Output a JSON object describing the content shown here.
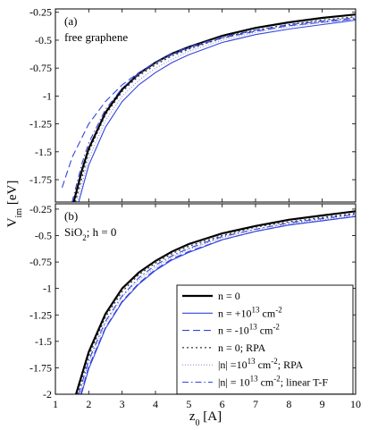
{
  "chart_data": [
    {
      "type": "line",
      "panel_label": "(a)",
      "annotation": "free graphene",
      "xlabel": "z0 [A]",
      "ylabel": "Vim [eV]",
      "xlim": [
        1,
        10
      ],
      "ylim": [
        -1.95,
        -0.22
      ],
      "xticks": [
        "1",
        "2",
        "3",
        "4",
        "5",
        "6",
        "7",
        "8",
        "9",
        "10"
      ],
      "yticks": [
        "-0.25",
        "-0.5",
        "-0.75",
        "-1",
        "-1.25",
        "-1.5",
        "-1.75"
      ],
      "ytick_values": [
        -0.25,
        -0.5,
        -0.75,
        -1,
        -1.25,
        -1.5,
        -1.75
      ],
      "grid": false,
      "series": [
        {
          "name": "n = 0",
          "color": "#000000",
          "dash": "solid",
          "width": 2.2,
          "x": [
            1.55,
            1.8,
            2,
            2.5,
            3,
            3.5,
            4,
            4.5,
            5,
            6,
            7,
            8,
            9,
            10
          ],
          "y": [
            -1.95,
            -1.66,
            -1.47,
            -1.15,
            -0.94,
            -0.8,
            -0.7,
            -0.62,
            -0.56,
            -0.46,
            -0.39,
            -0.34,
            -0.3,
            -0.27
          ]
        },
        {
          "name": "n = +10^13 cm^-2",
          "color": "#3344dd",
          "dash": "solid",
          "width": 1.1,
          "x": [
            1.7,
            2,
            2.5,
            3,
            3.5,
            4,
            4.5,
            5,
            6,
            7,
            8,
            9,
            10
          ],
          "y": [
            -1.95,
            -1.62,
            -1.28,
            -1.05,
            -0.9,
            -0.79,
            -0.7,
            -0.63,
            -0.52,
            -0.45,
            -0.4,
            -0.36,
            -0.32
          ]
        },
        {
          "name": "n = -10^13 cm^-2",
          "color": "#3344dd",
          "dash": "8,4",
          "width": 1.1,
          "x": [
            1.2,
            1.5,
            2,
            2.5,
            3,
            3.5,
            4,
            4.5,
            5,
            6,
            7,
            8,
            9,
            10
          ],
          "y": [
            -1.82,
            -1.55,
            -1.25,
            -1.05,
            -0.9,
            -0.79,
            -0.7,
            -0.63,
            -0.57,
            -0.48,
            -0.42,
            -0.37,
            -0.34,
            -0.31
          ]
        },
        {
          "name": "n = 0; RPA",
          "color": "#333333",
          "dash": "2,3",
          "width": 1.3,
          "x": [
            1.6,
            2,
            2.5,
            3,
            3.5,
            4,
            4.5,
            5,
            6,
            7,
            8,
            9,
            10
          ],
          "y": [
            -1.95,
            -1.5,
            -1.17,
            -0.96,
            -0.82,
            -0.72,
            -0.64,
            -0.58,
            -0.48,
            -0.41,
            -0.36,
            -0.32,
            -0.29
          ]
        },
        {
          "name": "|n| =10^13 cm^-2; RPA",
          "color": "#8f8fe0",
          "dash": "1,2",
          "width": 1.2,
          "x": [
            1.65,
            2,
            2.5,
            3,
            3.5,
            4,
            4.5,
            5,
            6,
            7,
            8,
            9,
            10
          ],
          "y": [
            -1.95,
            -1.56,
            -1.22,
            -1.0,
            -0.86,
            -0.75,
            -0.67,
            -0.6,
            -0.5,
            -0.43,
            -0.38,
            -0.34,
            -0.31
          ]
        },
        {
          "name": "|n| = 10^13 cm^-2; linear T-F",
          "color": "#3344dd",
          "dash": "7,3,1.5,3",
          "width": 1.1,
          "x": [
            1.5,
            1.8,
            2,
            2.5,
            3,
            3.5,
            4,
            4.5,
            5,
            6,
            7,
            8,
            9,
            10
          ],
          "y": [
            -1.95,
            -1.6,
            -1.42,
            -1.12,
            -0.93,
            -0.8,
            -0.7,
            -0.62,
            -0.56,
            -0.47,
            -0.41,
            -0.36,
            -0.33,
            -0.3
          ]
        }
      ]
    },
    {
      "type": "line",
      "panel_label": "(b)",
      "annotation": "SiO2; h = 0",
      "xlabel": "z0 [A]",
      "ylabel": "Vim [eV]",
      "xlim": [
        1,
        10
      ],
      "ylim": [
        -2,
        -0.2
      ],
      "xticks": [
        "1",
        "2",
        "3",
        "4",
        "5",
        "6",
        "7",
        "8",
        "9",
        "10"
      ],
      "yticks": [
        "-0.25",
        "-0.5",
        "-0.75",
        "-1",
        "-1.25",
        "-1.5",
        "-1.75",
        "-2"
      ],
      "ytick_values": [
        -0.25,
        -0.5,
        -0.75,
        -1,
        -1.25,
        -1.5,
        -1.75,
        -2
      ],
      "grid": false,
      "legend_position": "bottom-right",
      "series": [
        {
          "name": "n = 0",
          "color": "#000000",
          "dash": "solid",
          "width": 2.2,
          "x": [
            1.62,
            2,
            2.5,
            3,
            3.5,
            4,
            4.5,
            5,
            6,
            7,
            8,
            9,
            10
          ],
          "y": [
            -2,
            -1.6,
            -1.24,
            -1.0,
            -0.85,
            -0.74,
            -0.65,
            -0.58,
            -0.48,
            -0.41,
            -0.35,
            -0.31,
            -0.27
          ]
        },
        {
          "name": "n = +10^13 cm^-2",
          "color": "#3344dd",
          "dash": "solid",
          "width": 1.1,
          "x": [
            1.78,
            2,
            2.5,
            3,
            3.5,
            4,
            4.5,
            5,
            6,
            7,
            8,
            9,
            10
          ],
          "y": [
            -2,
            -1.76,
            -1.38,
            -1.13,
            -0.96,
            -0.83,
            -0.73,
            -0.66,
            -0.54,
            -0.46,
            -0.4,
            -0.36,
            -0.32
          ]
        },
        {
          "name": "n = -10^13 cm^-2",
          "color": "#3344dd",
          "dash": "8,4",
          "width": 1.1,
          "x": [
            1.76,
            2,
            2.5,
            3,
            3.5,
            4,
            4.5,
            5,
            6,
            7,
            8,
            9,
            10
          ],
          "y": [
            -2,
            -1.74,
            -1.37,
            -1.12,
            -0.95,
            -0.82,
            -0.72,
            -0.65,
            -0.54,
            -0.46,
            -0.4,
            -0.36,
            -0.32
          ]
        },
        {
          "name": "n = 0; RPA",
          "color": "#333333",
          "dash": "2,3",
          "width": 1.3,
          "x": [
            1.66,
            2,
            2.5,
            3,
            3.5,
            4,
            4.5,
            5,
            6,
            7,
            8,
            9,
            10
          ],
          "y": [
            -2,
            -1.64,
            -1.27,
            -1.03,
            -0.87,
            -0.76,
            -0.67,
            -0.6,
            -0.5,
            -0.42,
            -0.37,
            -0.33,
            -0.29
          ]
        },
        {
          "name": "|n| =10^13 cm^-2; RPA",
          "color": "#8f8fe0",
          "dash": "1,2",
          "width": 1.2,
          "x": [
            1.72,
            2,
            2.5,
            3,
            3.5,
            4,
            4.5,
            5,
            6,
            7,
            8,
            9,
            10
          ],
          "y": [
            -2,
            -1.7,
            -1.33,
            -1.08,
            -0.92,
            -0.8,
            -0.7,
            -0.63,
            -0.52,
            -0.44,
            -0.39,
            -0.35,
            -0.31
          ]
        },
        {
          "name": "|n| = 10^13 cm^-2; linear T-F",
          "color": "#3344dd",
          "dash": "7,3,1.5,3",
          "width": 1.1,
          "x": [
            1.7,
            2,
            2.5,
            3,
            3.5,
            4,
            4.5,
            5,
            6,
            7,
            8,
            9,
            10
          ],
          "y": [
            -2,
            -1.68,
            -1.31,
            -1.07,
            -0.9,
            -0.78,
            -0.69,
            -0.62,
            -0.51,
            -0.44,
            -0.38,
            -0.34,
            -0.3
          ]
        }
      ]
    }
  ]
}
